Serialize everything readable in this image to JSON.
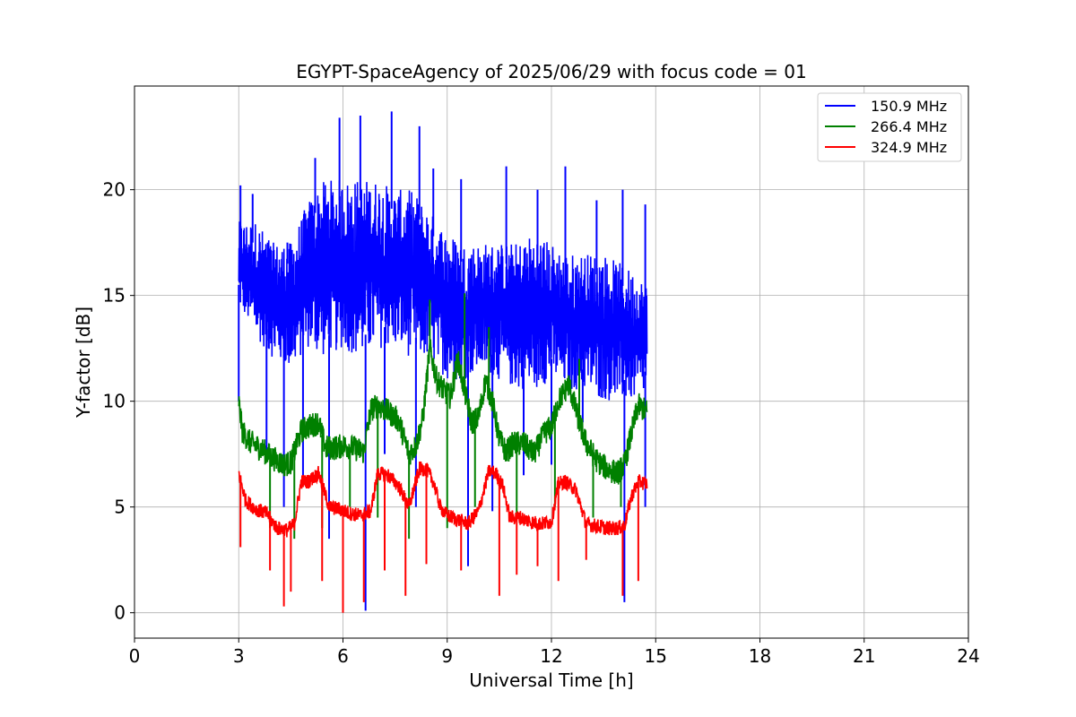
{
  "chart_data": {
    "type": "line",
    "title": "EGYPT-SpaceAgency of 2025/06/29 with focus code = 01",
    "xlabel": "Universal Time [h]",
    "ylabel": "Y-factor [dB]",
    "xlim": [
      0,
      24
    ],
    "ylim": [
      -1.2,
      24.9
    ],
    "xticks": [
      0,
      3,
      6,
      9,
      12,
      15,
      18,
      21,
      24
    ],
    "yticks": [
      0,
      5,
      10,
      15,
      20
    ],
    "grid": true,
    "legend_position": "top-right",
    "x_range_of_data": [
      3.0,
      14.75
    ],
    "series": [
      {
        "name": "150.9 MHz",
        "color": "#0000ff",
        "envelope_x": [
          3.0,
          3.5,
          4.0,
          4.5,
          5.0,
          5.5,
          6.0,
          6.5,
          7.0,
          7.5,
          8.0,
          8.5,
          9.0,
          9.5,
          10.0,
          10.5,
          11.0,
          11.5,
          12.0,
          12.5,
          13.0,
          13.5,
          14.0,
          14.5,
          14.75
        ],
        "envelope_low": [
          14.5,
          13.0,
          12.0,
          11.5,
          12.5,
          12.0,
          12.5,
          12.0,
          12.5,
          12.5,
          12.0,
          12.0,
          11.0,
          11.0,
          11.5,
          11.0,
          10.5,
          10.5,
          11.0,
          10.5,
          10.5,
          10.0,
          10.0,
          10.0,
          10.5
        ],
        "envelope_high": [
          18.5,
          18.5,
          17.5,
          17.5,
          19.5,
          20.5,
          20.5,
          20.5,
          20.5,
          20.0,
          20.0,
          19.0,
          18.0,
          17.5,
          17.5,
          17.5,
          17.5,
          18.0,
          17.5,
          17.0,
          17.0,
          17.0,
          16.5,
          16.0,
          15.5
        ],
        "peaks": [
          [
            3.05,
            20.2
          ],
          [
            3.4,
            19.8
          ],
          [
            4.4,
            17.5
          ],
          [
            5.2,
            21.5
          ],
          [
            5.9,
            23.4
          ],
          [
            6.5,
            23.5
          ],
          [
            7.4,
            23.7
          ],
          [
            8.2,
            23.0
          ],
          [
            8.6,
            21.0
          ],
          [
            9.4,
            20.5
          ],
          [
            10.7,
            21.1
          ],
          [
            11.6,
            20.0
          ],
          [
            12.4,
            21.1
          ],
          [
            13.3,
            19.5
          ],
          [
            14.05,
            20.0
          ],
          [
            14.7,
            19.3
          ]
        ],
        "dips": [
          [
            3.0,
            10.0
          ],
          [
            3.8,
            7.2
          ],
          [
            4.3,
            5.0
          ],
          [
            4.85,
            6.2
          ],
          [
            5.6,
            3.5
          ],
          [
            6.65,
            0.1
          ],
          [
            7.2,
            7.5
          ],
          [
            8.1,
            5.0
          ],
          [
            9.6,
            2.2
          ],
          [
            10.3,
            4.8
          ],
          [
            11.2,
            6.5
          ],
          [
            12.0,
            7.0
          ],
          [
            12.9,
            9.0
          ],
          [
            14.1,
            0.5
          ],
          [
            14.7,
            5.0
          ]
        ]
      },
      {
        "name": "266.4 MHz",
        "color": "#008000",
        "x": [
          3.0,
          3.1,
          3.3,
          3.6,
          4.0,
          4.3,
          4.5,
          4.8,
          5.0,
          5.3,
          5.5,
          5.8,
          6.0,
          6.3,
          6.6,
          6.8,
          7.0,
          7.3,
          7.6,
          7.9,
          8.1,
          8.3,
          8.5,
          8.7,
          8.9,
          9.1,
          9.3,
          9.5,
          9.7,
          9.9,
          10.1,
          10.3,
          10.5,
          10.7,
          10.9,
          11.2,
          11.5,
          11.8,
          12.0,
          12.2,
          12.5,
          12.8,
          13.0,
          13.3,
          13.6,
          13.9,
          14.1,
          14.3,
          14.5,
          14.75
        ],
        "y": [
          10.0,
          8.6,
          8.1,
          7.8,
          7.3,
          7.0,
          7.1,
          8.6,
          8.8,
          9.0,
          7.8,
          7.8,
          7.9,
          7.8,
          7.6,
          9.6,
          9.8,
          9.5,
          9.1,
          7.5,
          7.9,
          9.2,
          12.5,
          11.0,
          10.5,
          10.2,
          12.0,
          10.5,
          9.0,
          9.2,
          11.0,
          10.0,
          8.2,
          7.6,
          8.0,
          8.0,
          7.5,
          8.5,
          8.8,
          10.0,
          10.8,
          9.0,
          8.0,
          7.2,
          6.8,
          6.6,
          7.0,
          8.5,
          9.8,
          9.5
        ],
        "spikes": [
          [
            8.5,
            14.8
          ],
          [
            9.5,
            15.1
          ],
          [
            10.2,
            13.5
          ],
          [
            12.8,
            12.0
          ]
        ],
        "dips": [
          [
            3.9,
            4.0
          ],
          [
            4.6,
            3.5
          ],
          [
            5.4,
            4.0
          ],
          [
            6.2,
            5.0
          ],
          [
            7.0,
            4.5
          ],
          [
            7.9,
            3.5
          ],
          [
            9.0,
            4.0
          ],
          [
            9.8,
            5.0
          ],
          [
            11.0,
            4.5
          ],
          [
            12.1,
            5.0
          ],
          [
            13.2,
            4.5
          ],
          [
            14.0,
            5.0
          ]
        ]
      },
      {
        "name": "324.9 MHz",
        "color": "#ff0000",
        "x": [
          3.0,
          3.2,
          3.5,
          3.8,
          4.1,
          4.4,
          4.6,
          4.8,
          5.0,
          5.3,
          5.6,
          5.9,
          6.2,
          6.5,
          6.8,
          7.0,
          7.3,
          7.6,
          7.9,
          8.2,
          8.4,
          8.6,
          8.8,
          9.0,
          9.3,
          9.6,
          9.9,
          10.2,
          10.4,
          10.6,
          10.8,
          11.1,
          11.4,
          11.7,
          12.0,
          12.2,
          12.4,
          12.7,
          13.0,
          13.3,
          13.6,
          13.9,
          14.1,
          14.3,
          14.5,
          14.75
        ],
        "y": [
          6.6,
          5.3,
          4.9,
          4.7,
          4.0,
          3.9,
          4.2,
          6.2,
          6.2,
          6.6,
          5.0,
          4.9,
          4.7,
          4.6,
          4.8,
          6.6,
          6.5,
          6.0,
          5.0,
          6.8,
          6.8,
          6.2,
          5.0,
          4.6,
          4.4,
          4.2,
          4.8,
          6.7,
          6.6,
          6.0,
          4.5,
          4.5,
          4.3,
          4.2,
          4.3,
          6.1,
          6.2,
          5.8,
          4.2,
          4.1,
          4.0,
          4.0,
          4.1,
          5.5,
          6.2,
          6.1
        ],
        "dips": [
          [
            3.05,
            3.1
          ],
          [
            3.9,
            2.0
          ],
          [
            4.3,
            0.3
          ],
          [
            4.5,
            1.0
          ],
          [
            5.4,
            1.5
          ],
          [
            6.0,
            0.0
          ],
          [
            6.6,
            0.5
          ],
          [
            7.2,
            2.0
          ],
          [
            7.8,
            0.8
          ],
          [
            8.4,
            2.3
          ],
          [
            9.4,
            2.0
          ],
          [
            10.5,
            0.8
          ],
          [
            11.0,
            1.8
          ],
          [
            11.6,
            2.2
          ],
          [
            12.2,
            1.5
          ],
          [
            13.0,
            2.5
          ],
          [
            14.05,
            0.8
          ],
          [
            14.5,
            1.5
          ]
        ]
      }
    ]
  }
}
